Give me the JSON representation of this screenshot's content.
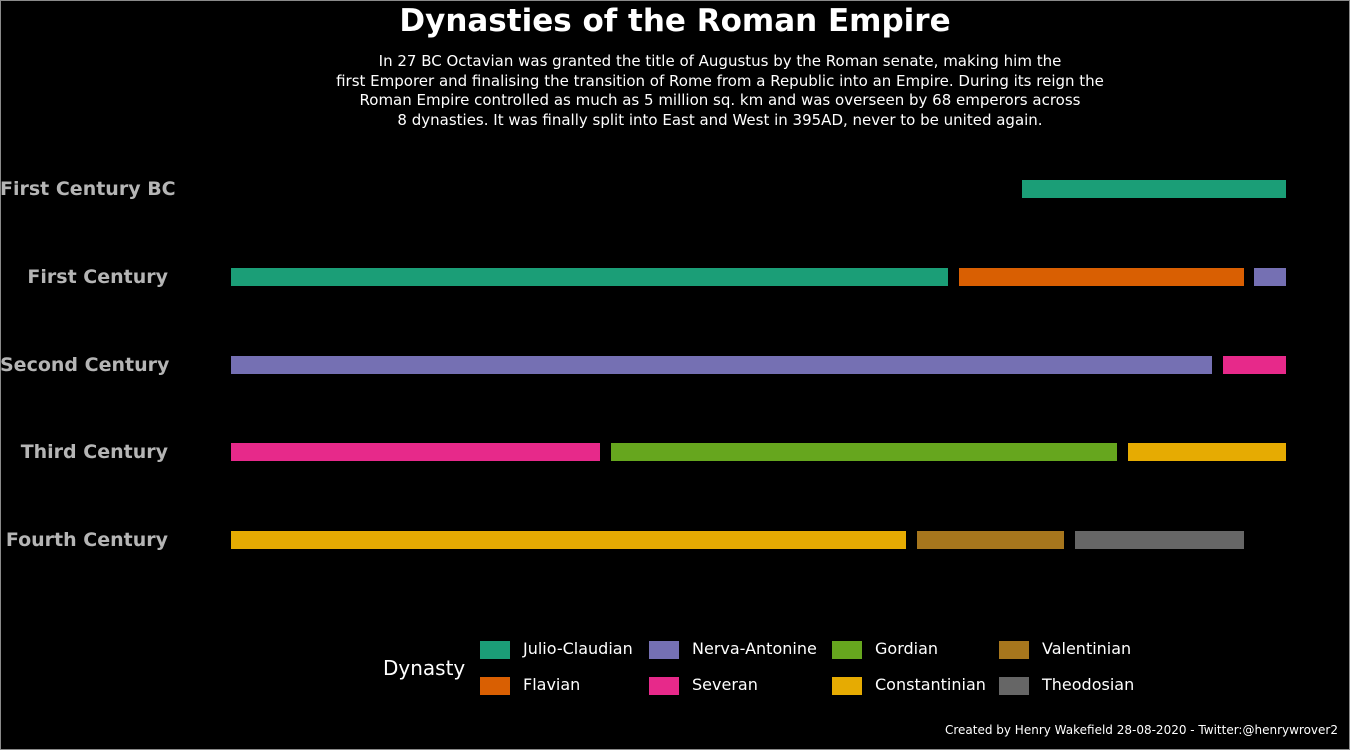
{
  "chart_data": {
    "type": "bar",
    "orientation": "horizontal",
    "title": "Dynasties of the Roman Empire",
    "subtitle": [
      "In 27 BC Octavian was granted the title of Augustus by the Roman senate, making him the",
      "first Emporer and finalising the transition of Rome from a Republic into an Empire. During its reign the",
      "Roman Empire controlled as much as 5 million sq. km and was overseen by 68 emperors across",
      "8 dynasties. It was finally split into East and West in 395AD, never to be united again."
    ],
    "categories": [
      "First Century BC",
      "First Century",
      "Second Century",
      "Third Century",
      "Fourth Century"
    ],
    "xlim": [
      0,
      100
    ],
    "segments": [
      {
        "row": 0,
        "dynasty": "Julio-Claudian",
        "start": 75,
        "end": 100
      },
      {
        "row": 1,
        "dynasty": "Julio-Claudian",
        "start": 0,
        "end": 68
      },
      {
        "row": 1,
        "dynasty": "Flavian",
        "start": 69,
        "end": 96
      },
      {
        "row": 1,
        "dynasty": "Nerva-Antonine",
        "start": 97,
        "end": 100
      },
      {
        "row": 2,
        "dynasty": "Nerva-Antonine",
        "start": 0,
        "end": 93
      },
      {
        "row": 2,
        "dynasty": "Severan",
        "start": 94,
        "end": 100
      },
      {
        "row": 3,
        "dynasty": "Severan",
        "start": 0,
        "end": 35
      },
      {
        "row": 3,
        "dynasty": "Gordian",
        "start": 36,
        "end": 84
      },
      {
        "row": 3,
        "dynasty": "Constantinian",
        "start": 85,
        "end": 100
      },
      {
        "row": 4,
        "dynasty": "Constantinian",
        "start": 0,
        "end": 64
      },
      {
        "row": 4,
        "dynasty": "Valentinian",
        "start": 65,
        "end": 79
      },
      {
        "row": 4,
        "dynasty": "Theodosian",
        "start": 80,
        "end": 96
      }
    ],
    "legend": {
      "title": "Dynasty",
      "placement": "bottom",
      "items": [
        {
          "name": "Julio-Claudian",
          "color": "#1b9e77"
        },
        {
          "name": "Flavian",
          "color": "#d95f02"
        },
        {
          "name": "Nerva-Antonine",
          "color": "#7570b3"
        },
        {
          "name": "Severan",
          "color": "#e7298a"
        },
        {
          "name": "Gordian",
          "color": "#66a61e"
        },
        {
          "name": "Constantinian",
          "color": "#e6ab02"
        },
        {
          "name": "Valentinian",
          "color": "#a6761d"
        },
        {
          "name": "Theodosian",
          "color": "#666666"
        }
      ]
    },
    "grid": false,
    "caption": "Created by Henry Wakefield 28-08-2020 - Twitter:@henrywrover2"
  }
}
